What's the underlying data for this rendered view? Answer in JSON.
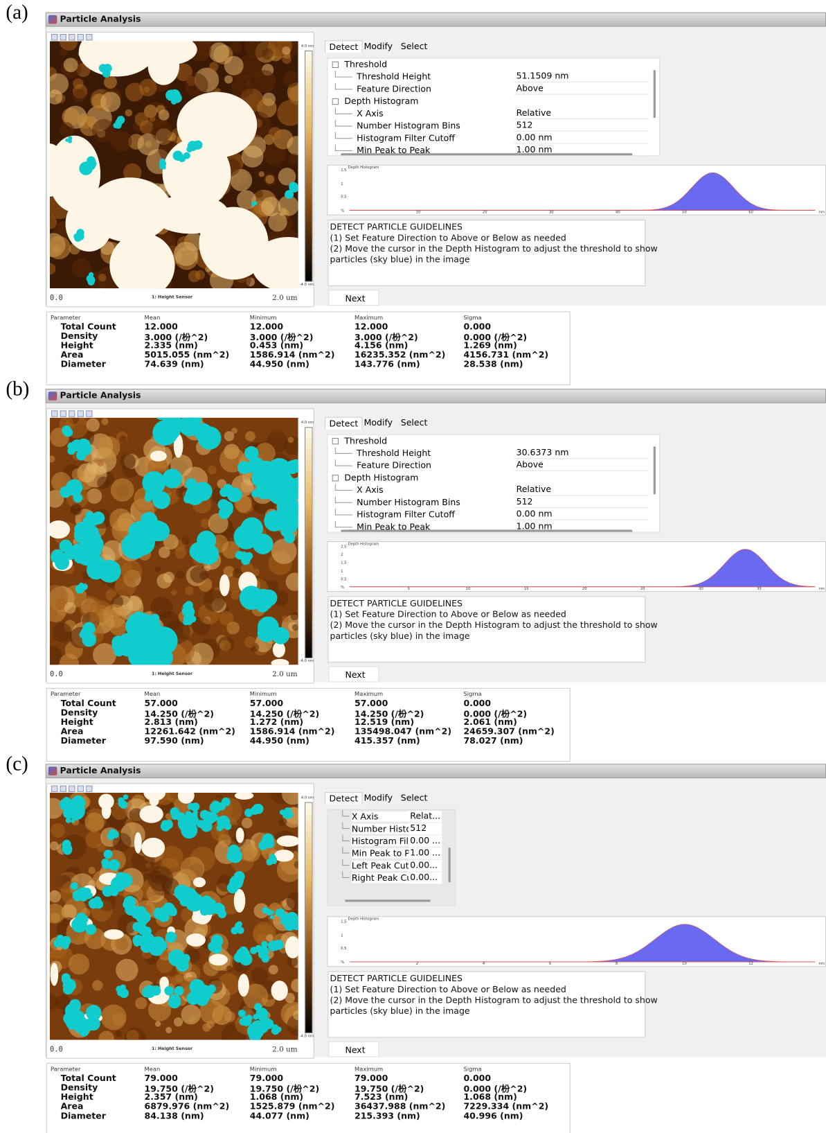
{
  "panels": [
    {
      "label": "(a)",
      "title": "Particle Analysis",
      "image": {
        "origin": "0.0",
        "channel": "1: Height Sensor",
        "size": "2.0 um",
        "scale_max": "4.0 nm",
        "scale_min": "-4.0 nm"
      },
      "tabs": [
        "Detect",
        "Modify",
        "Select"
      ],
      "groups": [
        {
          "name": "Threshold",
          "items": [
            [
              "Threshold Height",
              "51.1509 nm"
            ],
            [
              "Feature Direction",
              "Above"
            ]
          ]
        },
        {
          "name": "Depth Histogram",
          "items": [
            [
              "X Axis",
              "Relative"
            ],
            [
              "Number Histogram Bins",
              "512"
            ],
            [
              "Histogram Filter Cutoff",
              "0.00 nm"
            ],
            [
              "Min Peak to Peak",
              "1.00 nm"
            ]
          ]
        }
      ],
      "histogram": {
        "title": "Depth Histogram",
        "yticks": [
          "1.5",
          "1",
          "0.5",
          "%"
        ],
        "xticks": [
          "10",
          "20",
          "30",
          "40",
          "50",
          "60"
        ],
        "unit": "nm"
      },
      "guidelines": [
        "DETECT PARTICLE GUIDELINES",
        "(1) Set Feature Direction to Above or Below as needed",
        "(2) Move the cursor in the Depth Histogram to adjust the threshold to show",
        "particles (sky blue) in the image"
      ],
      "button": "Next",
      "stats": {
        "headers": [
          "Parameter",
          "Mean",
          "Minimum",
          "Maximum",
          "Sigma"
        ],
        "rows": [
          [
            "Total Count",
            "12.000",
            "12.000",
            "12.000",
            "0.000"
          ],
          [
            "Density",
            "3.000 (/枌^2)",
            "3.000 (/枌^2)",
            "3.000 (/枌^2)",
            "0.000 (/枌^2)"
          ],
          [
            "Height",
            "2.335 (nm)",
            "0.453 (nm)",
            "4.156 (nm)",
            "1.269 (nm)"
          ],
          [
            "Area",
            "5015.055 (nm^2)",
            "1586.914 (nm^2)",
            "16235.352 (nm^2)",
            "4156.731 (nm^2)"
          ],
          [
            "Diameter",
            "74.639 (nm)",
            "44.950 (nm)",
            "143.776 (nm)",
            "28.538 (nm)"
          ]
        ]
      }
    },
    {
      "label": "(b)",
      "title": "Particle Analysis",
      "image": {
        "origin": "0.0",
        "channel": "1: Height Sensor",
        "size": "2.0 um",
        "scale_max": "4.0 nm",
        "scale_min": "-4.0 nm"
      },
      "tabs": [
        "Detect",
        "Modify",
        "Select"
      ],
      "groups": [
        {
          "name": "Threshold",
          "items": [
            [
              "Threshold Height",
              "30.6373 nm"
            ],
            [
              "Feature Direction",
              "Above"
            ]
          ]
        },
        {
          "name": "Depth Histogram",
          "items": [
            [
              "X Axis",
              "Relative"
            ],
            [
              "Number Histogram Bins",
              "512"
            ],
            [
              "Histogram Filter Cutoff",
              "0.00 nm"
            ],
            [
              "Min Peak to Peak",
              "1.00 nm"
            ]
          ]
        }
      ],
      "histogram": {
        "title": "Depth Histogram",
        "yticks": [
          "2.5",
          "2",
          "1.5",
          "1",
          "0.5",
          "%"
        ],
        "xticks": [
          "5",
          "10",
          "15",
          "20",
          "25",
          "30",
          "35"
        ],
        "unit": "nm"
      },
      "guidelines": [
        "DETECT PARTICLE GUIDELINES",
        "(1) Set Feature Direction to Above or Below as needed",
        "(2) Move the cursor in the Depth Histogram to adjust the threshold to show",
        "particles (sky blue) in the image"
      ],
      "button": "Next",
      "stats": {
        "headers": [
          "Parameter",
          "Mean",
          "Minimum",
          "Maximum",
          "Sigma"
        ],
        "rows": [
          [
            "Total Count",
            "57.000",
            "57.000",
            "57.000",
            "0.000"
          ],
          [
            "Density",
            "14.250 (/枌^2)",
            "14.250 (/枌^2)",
            "14.250 (/枌^2)",
            "0.000 (/枌^2)"
          ],
          [
            "Height",
            "2.813 (nm)",
            "1.272 (nm)",
            "12.519 (nm)",
            "2.061 (nm)"
          ],
          [
            "Area",
            "12261.642 (nm^2)",
            "1586.914 (nm^2)",
            "135498.047 (nm^2)",
            "24659.307 (nm^2)"
          ],
          [
            "Diameter",
            "97.590 (nm)",
            "44.950 (nm)",
            "415.357 (nm)",
            "78.027 (nm)"
          ]
        ]
      }
    },
    {
      "label": "(c)",
      "title": "Particle Analysis",
      "image": {
        "origin": "0.0",
        "channel": "1: Height Sensor",
        "size": "2.0 um",
        "scale_max": "4.0 nm",
        "scale_min": "-4.0 nm"
      },
      "tabs": [
        "Detect",
        "Modify",
        "Select"
      ],
      "properties": [
        [
          "X Axis",
          "Relat..."
        ],
        [
          "Number Histo",
          "512"
        ],
        [
          "Histogram Filt",
          "0.00 ..."
        ],
        [
          "Min Peak to P",
          "1.00 ..."
        ],
        [
          "Left Peak Cutc",
          "0.00..."
        ],
        [
          "Right Peak Cu",
          "0.00..."
        ]
      ],
      "histogram": {
        "title": "Depth Histogram",
        "yticks": [
          "1.5",
          "1",
          "0.5",
          "%"
        ],
        "xticks": [
          "2",
          "4",
          "6",
          "8",
          "10",
          "12"
        ],
        "unit": "nm"
      },
      "guidelines": [
        "DETECT PARTICLE GUIDELINES",
        "(1) Set Feature Direction to Above or Below as needed",
        "(2) Move the cursor in the Depth Histogram to adjust the threshold to show",
        "particles (sky blue) in the image"
      ],
      "button": "Next",
      "stats": {
        "headers": [
          "Parameter",
          "Mean",
          "Minimum",
          "Maximum",
          "Sigma"
        ],
        "rows": [
          [
            "Total Count",
            "79.000",
            "79.000",
            "79.000",
            "0.000"
          ],
          [
            "Density",
            "19.750 (/枌^2)",
            "19.750 (/枌^2)",
            "19.750 (/枌^2)",
            "0.000 (/枌^2)"
          ],
          [
            "Height",
            "2.357 (nm)",
            "1.068 (nm)",
            "7.523 (nm)",
            "1.068 (nm)"
          ],
          [
            "Area",
            "6879.976 (nm^2)",
            "1525.879 (nm^2)",
            "36437.988 (nm^2)",
            "7229.334 (nm^2)"
          ],
          [
            "Diameter",
            "84.138 (nm)",
            "44.077 (nm)",
            "215.393 (nm)",
            "40.996 (nm)"
          ]
        ]
      }
    }
  ]
}
